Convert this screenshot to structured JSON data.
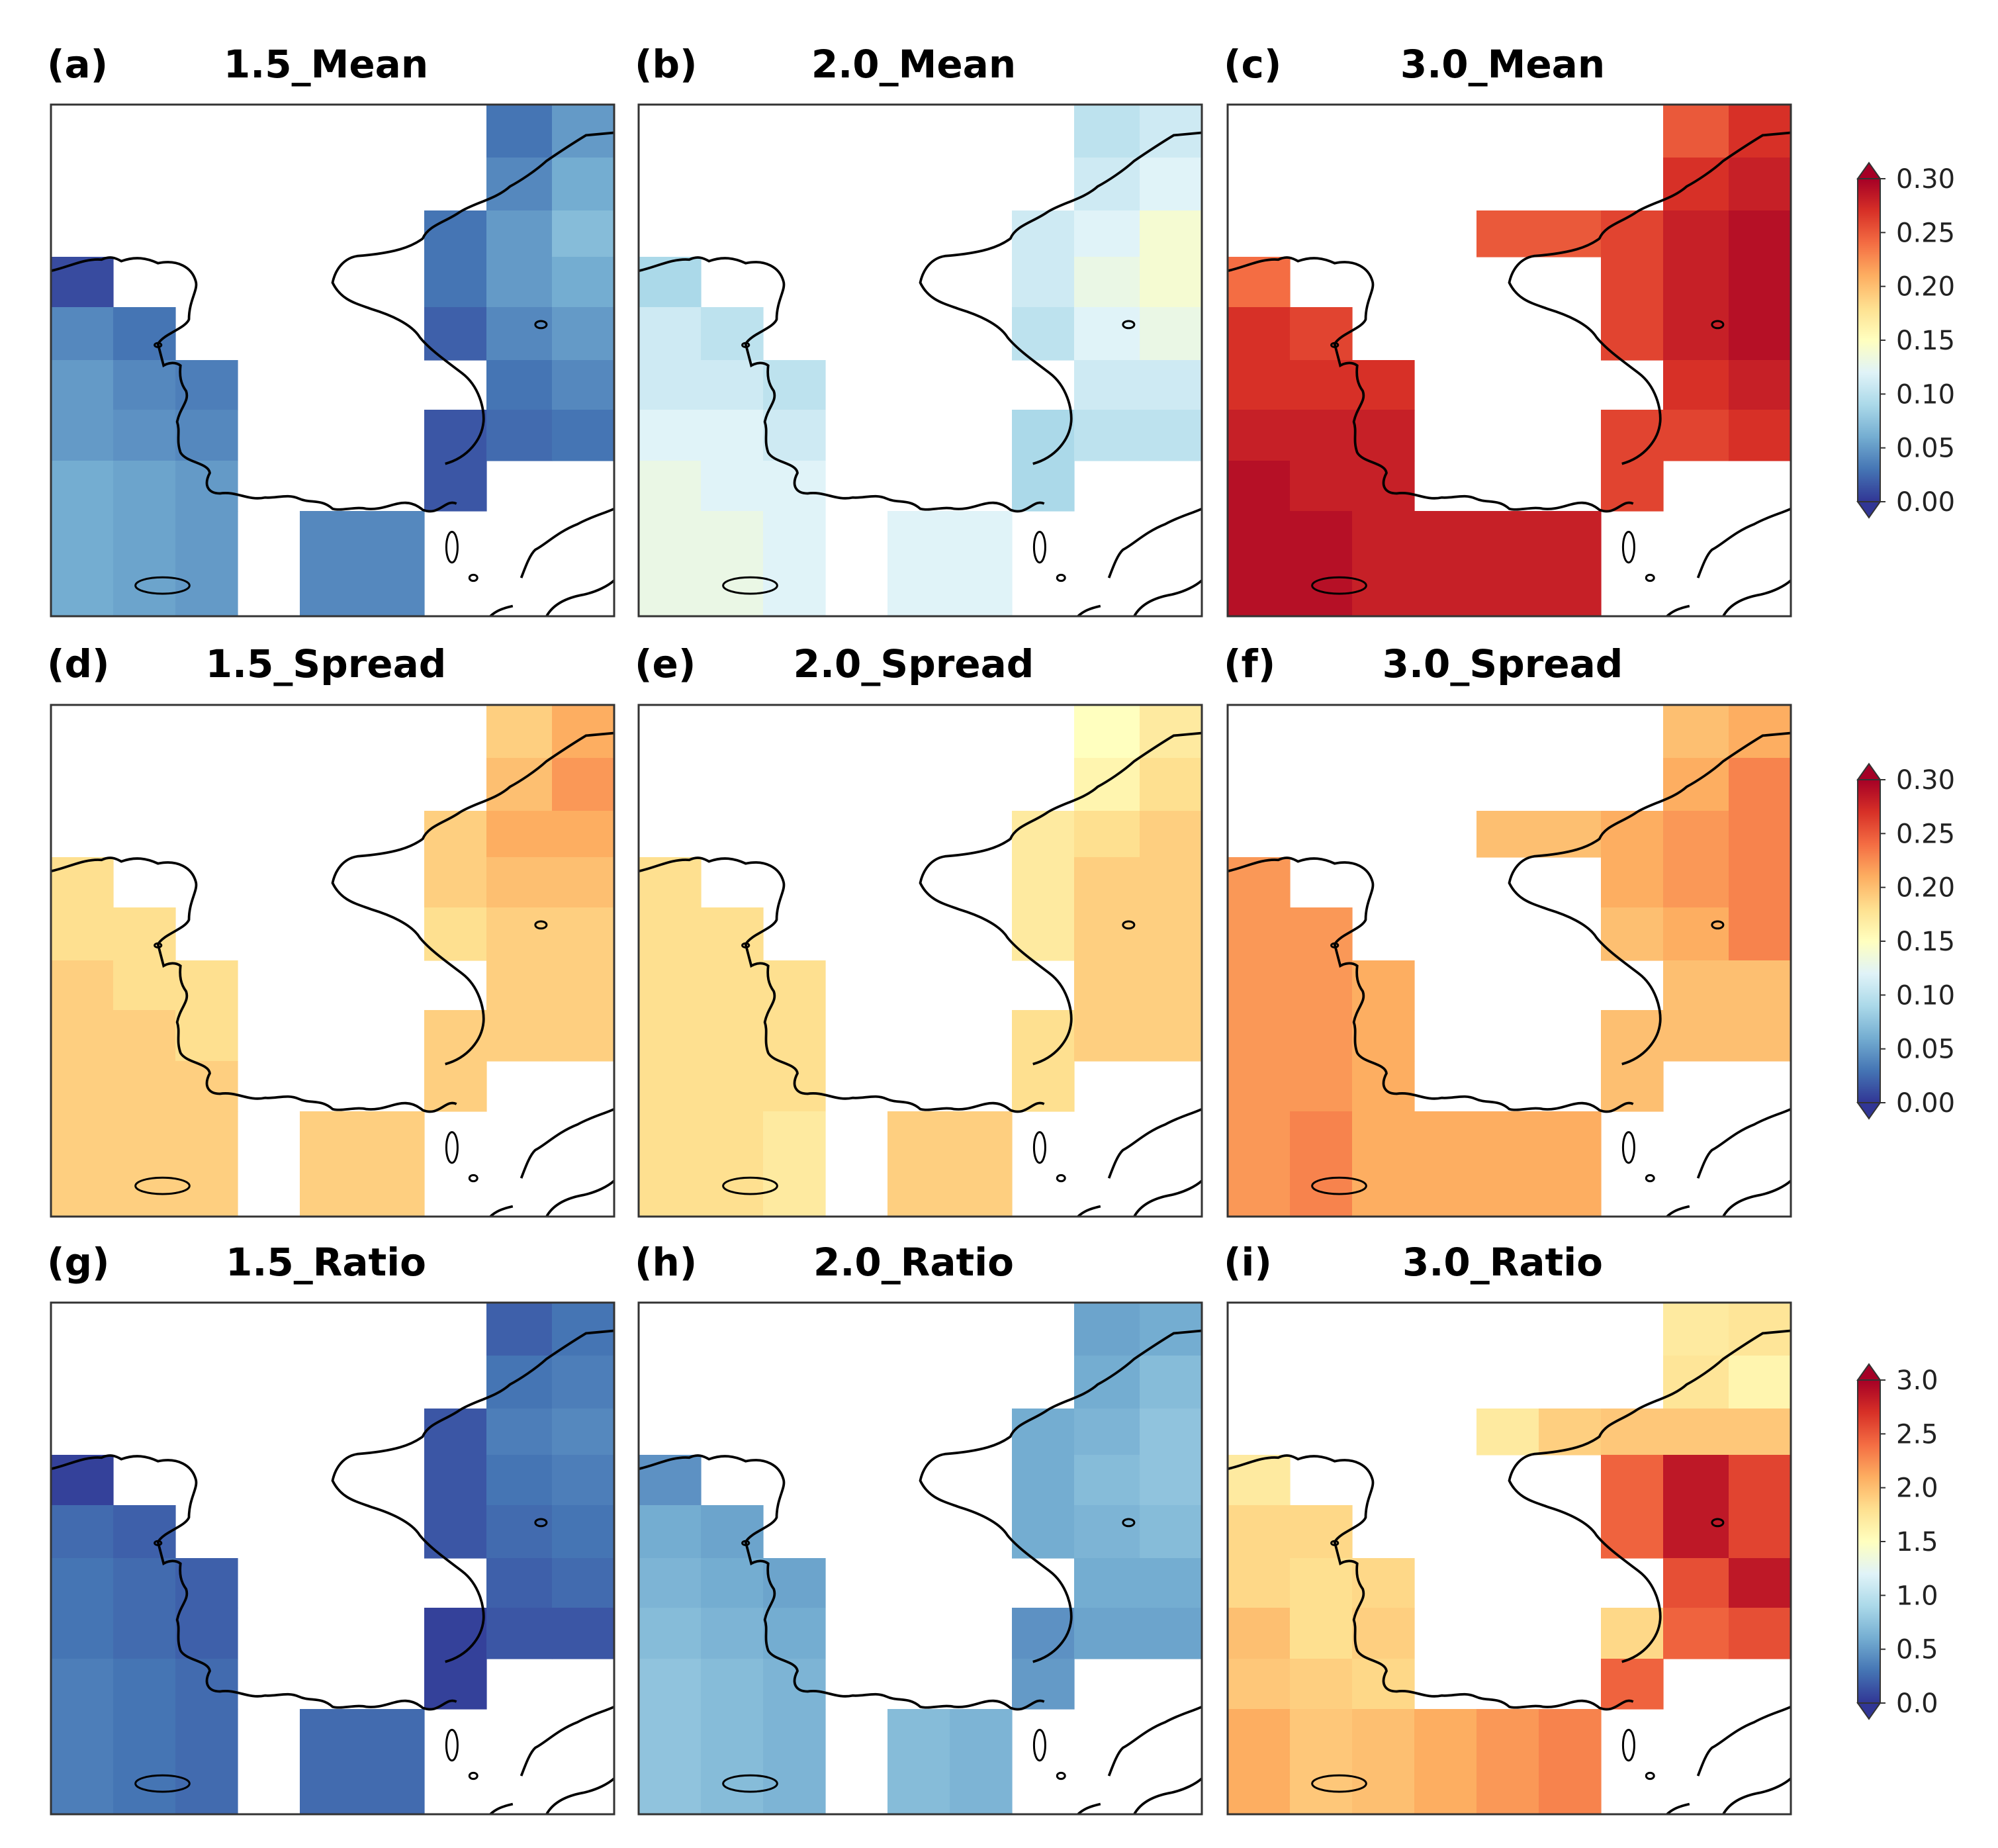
{
  "figure": {
    "panels": [
      {
        "letter": "(a)",
        "title": "1.5_Mean",
        "row": 0,
        "col": 0
      },
      {
        "letter": "(b)",
        "title": "2.0_Mean",
        "row": 0,
        "col": 1
      },
      {
        "letter": "(c)",
        "title": "3.0_Mean",
        "row": 0,
        "col": 2
      },
      {
        "letter": "(d)",
        "title": "1.5_Spread",
        "row": 1,
        "col": 0
      },
      {
        "letter": "(e)",
        "title": "2.0_Spread",
        "row": 1,
        "col": 1
      },
      {
        "letter": "(f)",
        "title": "3.0_Spread",
        "row": 1,
        "col": 2
      },
      {
        "letter": "(g)",
        "title": "1.5_Ratio",
        "row": 2,
        "col": 0
      },
      {
        "letter": "(h)",
        "title": "2.0_Ratio",
        "row": 2,
        "col": 1
      },
      {
        "letter": "(i)",
        "title": "3.0_Ratio",
        "row": 2,
        "col": 2
      }
    ],
    "colorbars": [
      {
        "row": 0,
        "min": 0,
        "max": 0.3,
        "ticks": [
          "0.00",
          "0.05",
          "0.10",
          "0.15",
          "0.20",
          "0.25",
          "0.30"
        ]
      },
      {
        "row": 1,
        "min": 0,
        "max": 0.3,
        "ticks": [
          "0.00",
          "0.05",
          "0.10",
          "0.15",
          "0.20",
          "0.25",
          "0.30"
        ]
      },
      {
        "row": 2,
        "min": 0,
        "max": 3.0,
        "ticks": [
          "0.0",
          "0.5",
          "1.0",
          "1.5",
          "2.0",
          "2.5",
          "3.0"
        ]
      }
    ],
    "colormap": [
      "#313695",
      "#4575b4",
      "#74add1",
      "#abd9e9",
      "#e0f3f8",
      "#ffffbf",
      "#fee090",
      "#fdae61",
      "#f46d43",
      "#d73027",
      "#a50026"
    ],
    "colors": {
      "coast": "#000000",
      "frame": "#333333",
      "background": "#ffffff"
    }
  },
  "chart_data": {
    "type": "heatmap",
    "description_units": "grid cells indexed [row][col] on a 9x9 grid (row 0 = top); null = masked/white",
    "panels": {
      "1.5_Mean": [
        [
          null,
          null,
          null,
          null,
          null,
          null,
          null,
          0.03,
          0.05
        ],
        [
          null,
          null,
          null,
          null,
          null,
          null,
          null,
          0.04,
          0.06
        ],
        [
          null,
          null,
          null,
          null,
          null,
          null,
          0.03,
          0.05,
          0.07
        ],
        [
          0.01,
          null,
          null,
          null,
          null,
          null,
          0.03,
          0.05,
          0.06
        ],
        [
          0.04,
          0.03,
          null,
          null,
          null,
          null,
          0.02,
          0.04,
          0.05
        ],
        [
          0.05,
          0.04,
          0.035,
          null,
          null,
          null,
          null,
          0.03,
          0.04
        ],
        [
          0.05,
          0.045,
          0.04,
          null,
          null,
          null,
          0.015,
          0.025,
          0.03
        ],
        [
          0.06,
          0.055,
          0.05,
          null,
          null,
          null,
          0.015,
          null,
          null
        ],
        [
          0.06,
          0.055,
          0.05,
          null,
          0.04,
          0.04,
          null,
          null,
          null
        ]
      ],
      "2.0_Mean": [
        [
          null,
          null,
          null,
          null,
          null,
          null,
          null,
          0.1,
          0.11
        ],
        [
          null,
          null,
          null,
          null,
          null,
          null,
          null,
          0.11,
          0.12
        ],
        [
          null,
          null,
          null,
          null,
          null,
          null,
          0.11,
          0.12,
          0.14
        ],
        [
          0.09,
          null,
          null,
          null,
          null,
          null,
          0.11,
          0.13,
          0.14
        ],
        [
          0.11,
          0.1,
          null,
          null,
          null,
          null,
          0.1,
          0.12,
          0.13
        ],
        [
          0.11,
          0.11,
          0.1,
          null,
          null,
          null,
          null,
          0.11,
          0.11
        ],
        [
          0.12,
          0.12,
          0.11,
          null,
          null,
          null,
          0.09,
          0.1,
          0.1
        ],
        [
          0.13,
          0.12,
          0.12,
          null,
          null,
          null,
          0.09,
          null,
          null
        ],
        [
          0.13,
          0.13,
          0.12,
          null,
          0.12,
          0.12,
          null,
          null,
          null
        ]
      ],
      "3.0_Mean": [
        [
          null,
          null,
          null,
          null,
          null,
          null,
          null,
          0.25,
          0.27
        ],
        [
          null,
          null,
          null,
          null,
          null,
          null,
          null,
          0.27,
          0.28
        ],
        [
          null,
          null,
          null,
          null,
          0.25,
          0.25,
          0.26,
          0.28,
          0.29
        ],
        [
          0.24,
          null,
          null,
          null,
          null,
          null,
          0.26,
          0.28,
          0.29
        ],
        [
          0.27,
          0.26,
          null,
          null,
          null,
          null,
          0.26,
          0.28,
          0.29
        ],
        [
          0.27,
          0.27,
          0.27,
          null,
          null,
          null,
          null,
          0.27,
          0.28
        ],
        [
          0.28,
          0.28,
          0.28,
          null,
          null,
          null,
          0.26,
          0.26,
          0.27
        ],
        [
          0.29,
          0.28,
          0.28,
          null,
          null,
          null,
          0.26,
          null,
          null
        ],
        [
          0.29,
          0.29,
          0.28,
          0.28,
          0.28,
          0.28,
          null,
          null,
          null
        ]
      ],
      "1.5_Spread": [
        [
          null,
          null,
          null,
          null,
          null,
          null,
          null,
          0.19,
          0.21
        ],
        [
          null,
          null,
          null,
          null,
          null,
          null,
          null,
          0.2,
          0.22
        ],
        [
          null,
          null,
          null,
          null,
          null,
          null,
          0.19,
          0.21,
          0.21
        ],
        [
          0.18,
          null,
          null,
          null,
          null,
          null,
          0.19,
          0.2,
          0.2
        ],
        [
          0.18,
          0.18,
          null,
          null,
          null,
          null,
          0.18,
          0.19,
          0.19
        ],
        [
          0.19,
          0.18,
          0.18,
          null,
          null,
          null,
          null,
          0.19,
          0.19
        ],
        [
          0.19,
          0.19,
          0.18,
          null,
          null,
          null,
          0.19,
          0.19,
          0.19
        ],
        [
          0.19,
          0.19,
          0.19,
          null,
          null,
          null,
          0.19,
          null,
          null
        ],
        [
          0.19,
          0.19,
          0.19,
          null,
          0.19,
          0.19,
          null,
          null,
          null
        ]
      ],
      "2.0_Spread": [
        [
          null,
          null,
          null,
          null,
          null,
          null,
          null,
          0.15,
          0.17
        ],
        [
          null,
          null,
          null,
          null,
          null,
          null,
          null,
          0.16,
          0.18
        ],
        [
          null,
          null,
          null,
          null,
          null,
          null,
          0.17,
          0.18,
          0.19
        ],
        [
          0.18,
          null,
          null,
          null,
          null,
          null,
          0.17,
          0.19,
          0.19
        ],
        [
          0.18,
          0.18,
          null,
          null,
          null,
          null,
          0.17,
          0.19,
          0.19
        ],
        [
          0.18,
          0.18,
          0.18,
          null,
          null,
          null,
          null,
          0.19,
          0.19
        ],
        [
          0.18,
          0.18,
          0.18,
          null,
          null,
          null,
          0.18,
          0.19,
          0.19
        ],
        [
          0.18,
          0.18,
          0.18,
          null,
          null,
          null,
          0.18,
          null,
          null
        ],
        [
          0.18,
          0.18,
          0.17,
          null,
          0.19,
          0.19,
          null,
          null,
          null
        ]
      ],
      "3.0_Spread": [
        [
          null,
          null,
          null,
          null,
          null,
          null,
          null,
          0.2,
          0.21
        ],
        [
          null,
          null,
          null,
          null,
          null,
          null,
          null,
          0.21,
          0.23
        ],
        [
          null,
          null,
          null,
          null,
          0.2,
          0.2,
          0.21,
          0.22,
          0.23
        ],
        [
          0.22,
          null,
          null,
          null,
          null,
          null,
          0.21,
          0.22,
          0.23
        ],
        [
          0.22,
          0.22,
          null,
          null,
          null,
          null,
          0.2,
          0.21,
          0.23
        ],
        [
          0.22,
          0.22,
          0.21,
          null,
          null,
          null,
          null,
          0.2,
          0.2
        ],
        [
          0.22,
          0.22,
          0.21,
          null,
          null,
          null,
          0.2,
          0.2,
          0.2
        ],
        [
          0.22,
          0.22,
          0.21,
          null,
          null,
          null,
          0.2,
          null,
          null
        ],
        [
          0.22,
          0.23,
          0.21,
          0.21,
          0.21,
          0.21,
          null,
          null,
          null
        ]
      ],
      "1.5_Ratio": [
        [
          null,
          null,
          null,
          null,
          null,
          null,
          null,
          0.2,
          0.3
        ],
        [
          null,
          null,
          null,
          null,
          null,
          null,
          null,
          0.3,
          0.35
        ],
        [
          null,
          null,
          null,
          null,
          null,
          null,
          0.15,
          0.35,
          0.4
        ],
        [
          0.05,
          null,
          null,
          null,
          null,
          null,
          0.15,
          0.3,
          0.35
        ],
        [
          0.25,
          0.2,
          null,
          null,
          null,
          null,
          0.15,
          0.25,
          0.3
        ],
        [
          0.3,
          0.25,
          0.2,
          null,
          null,
          null,
          null,
          0.2,
          0.25
        ],
        [
          0.3,
          0.25,
          0.2,
          null,
          null,
          null,
          0.05,
          0.15,
          0.15
        ],
        [
          0.35,
          0.3,
          0.25,
          null,
          null,
          null,
          0.05,
          null,
          null
        ],
        [
          0.35,
          0.3,
          0.25,
          null,
          0.25,
          0.25,
          null,
          null,
          null
        ]
      ],
      "2.0_Ratio": [
        [
          null,
          null,
          null,
          null,
          null,
          null,
          null,
          0.55,
          0.6
        ],
        [
          null,
          null,
          null,
          null,
          null,
          null,
          null,
          0.6,
          0.7
        ],
        [
          null,
          null,
          null,
          null,
          null,
          null,
          0.6,
          0.65,
          0.75
        ],
        [
          0.45,
          null,
          null,
          null,
          null,
          null,
          0.6,
          0.7,
          0.75
        ],
        [
          0.6,
          0.55,
          null,
          null,
          null,
          null,
          0.6,
          0.65,
          0.7
        ],
        [
          0.65,
          0.6,
          0.55,
          null,
          null,
          null,
          null,
          0.6,
          0.6
        ],
        [
          0.7,
          0.65,
          0.6,
          null,
          null,
          null,
          0.45,
          0.55,
          0.55
        ],
        [
          0.75,
          0.7,
          0.65,
          null,
          null,
          null,
          0.5,
          null,
          null
        ],
        [
          0.75,
          0.7,
          0.65,
          null,
          0.7,
          0.65,
          null,
          null,
          null
        ]
      ],
      "3.0_Ratio": [
        [
          null,
          null,
          null,
          null,
          null,
          null,
          null,
          1.7,
          1.75
        ],
        [
          null,
          null,
          null,
          null,
          null,
          null,
          null,
          1.75,
          1.6
        ],
        [
          null,
          null,
          null,
          null,
          1.7,
          1.9,
          1.95,
          1.95,
          1.95
        ],
        [
          1.7,
          null,
          null,
          null,
          null,
          null,
          2.45,
          2.85,
          2.6
        ],
        [
          1.85,
          1.85,
          null,
          null,
          null,
          null,
          2.45,
          2.85,
          2.6
        ],
        [
          1.85,
          1.8,
          1.85,
          null,
          null,
          null,
          null,
          2.55,
          2.85
        ],
        [
          2.0,
          1.8,
          1.9,
          null,
          null,
          null,
          1.85,
          2.45,
          2.55
        ],
        [
          1.95,
          1.9,
          1.85,
          null,
          null,
          null,
          2.45,
          null,
          null
        ],
        [
          2.1,
          1.95,
          2.0,
          2.1,
          2.2,
          2.3,
          null,
          null,
          null
        ]
      ]
    }
  }
}
